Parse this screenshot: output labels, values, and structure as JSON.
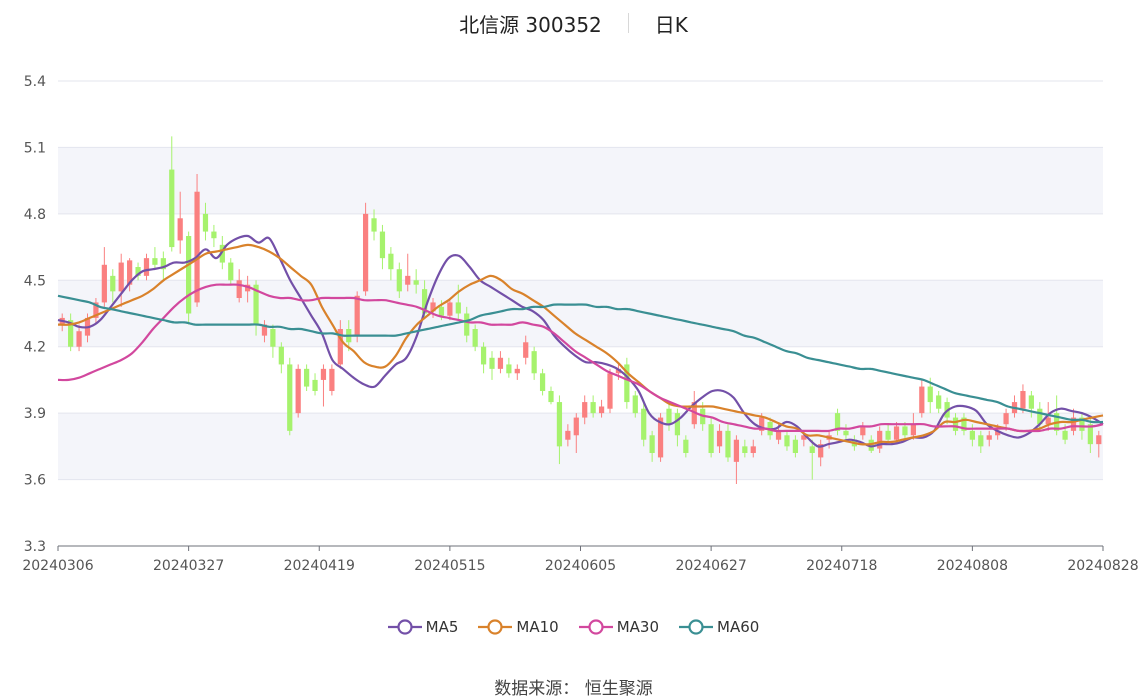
{
  "header": {
    "stock": "北信源 300352",
    "period": "日K"
  },
  "source": "数据来源：  恒生聚源",
  "chart_data": {
    "type": "candlestick",
    "y_ticks": [
      "3.3",
      "3.6",
      "3.9",
      "4.2",
      "4.5",
      "4.8",
      "5.1",
      "5.4"
    ],
    "ylim": [
      3.3,
      5.4
    ],
    "x_ticks": [
      "20240306",
      "20240327",
      "20240419",
      "20240515",
      "20240605",
      "20240627",
      "20240718",
      "20240808",
      "20240828"
    ],
    "up_color": "#fa8080",
    "down_color": "#a6f26d",
    "series": [
      {
        "name": "MA5",
        "color": "#7350a8",
        "values": [
          4.32,
          4.31,
          4.29,
          4.29,
          4.32,
          4.38,
          4.44,
          4.5,
          4.54,
          4.55,
          4.56,
          4.58,
          4.58,
          4.6,
          4.64,
          4.6,
          4.66,
          4.69,
          4.7,
          4.67,
          4.69,
          4.6,
          4.5,
          4.42,
          4.34,
          4.26,
          4.14,
          4.1,
          4.06,
          4.03,
          4.02,
          4.07,
          4.12,
          4.15,
          4.25,
          4.4,
          4.52,
          4.6,
          4.61,
          4.56,
          4.5,
          4.47,
          4.44,
          4.41,
          4.38,
          4.36,
          4.32,
          4.25,
          4.2,
          4.16,
          4.13,
          4.13,
          4.12,
          4.1,
          4.06,
          4.0,
          3.9,
          3.86,
          3.85,
          3.88,
          3.93,
          3.97,
          4.0,
          4.0,
          3.97,
          3.9,
          3.85,
          3.83,
          3.83,
          3.86,
          3.84,
          3.79,
          3.75,
          3.76,
          3.77,
          3.78,
          3.77,
          3.75,
          3.76,
          3.76,
          3.77,
          3.79,
          3.79,
          3.82,
          3.9,
          3.93,
          3.93,
          3.91,
          3.85,
          3.82,
          3.8,
          3.79,
          3.81,
          3.85,
          3.9,
          3.92,
          3.91,
          3.9,
          3.88,
          3.85
        ]
      },
      {
        "name": "MA10",
        "color": "#d9822b",
        "values": [
          4.3,
          4.3,
          4.31,
          4.33,
          4.35,
          4.37,
          4.39,
          4.41,
          4.43,
          4.46,
          4.5,
          4.53,
          4.56,
          4.59,
          4.62,
          4.63,
          4.64,
          4.65,
          4.66,
          4.65,
          4.63,
          4.6,
          4.56,
          4.52,
          4.48,
          4.38,
          4.3,
          4.22,
          4.18,
          4.13,
          4.11,
          4.11,
          4.16,
          4.24,
          4.3,
          4.34,
          4.38,
          4.41,
          4.45,
          4.48,
          4.5,
          4.52,
          4.5,
          4.46,
          4.44,
          4.41,
          4.38,
          4.34,
          4.3,
          4.26,
          4.23,
          4.2,
          4.17,
          4.13,
          4.08,
          4.04,
          4.0,
          3.97,
          3.94,
          3.93,
          3.93,
          3.93,
          3.93,
          3.92,
          3.91,
          3.9,
          3.89,
          3.88,
          3.86,
          3.84,
          3.83,
          3.8,
          3.8,
          3.79,
          3.78,
          3.77,
          3.76,
          3.76,
          3.77,
          3.77,
          3.78,
          3.79,
          3.8,
          3.82,
          3.86,
          3.86,
          3.87,
          3.86,
          3.85,
          3.84,
          3.83,
          3.82,
          3.82,
          3.83,
          3.85,
          3.86,
          3.86,
          3.87,
          3.88,
          3.89
        ]
      },
      {
        "name": "MA30",
        "color": "#d2489e",
        "values": [
          4.05,
          4.05,
          4.06,
          4.08,
          4.1,
          4.12,
          4.14,
          4.17,
          4.22,
          4.28,
          4.33,
          4.38,
          4.42,
          4.45,
          4.47,
          4.48,
          4.48,
          4.48,
          4.47,
          4.45,
          4.43,
          4.42,
          4.42,
          4.41,
          4.41,
          4.42,
          4.42,
          4.42,
          4.42,
          4.41,
          4.41,
          4.41,
          4.4,
          4.39,
          4.38,
          4.36,
          4.34,
          4.33,
          4.32,
          4.31,
          4.31,
          4.3,
          4.3,
          4.3,
          4.31,
          4.3,
          4.29,
          4.26,
          4.22,
          4.18,
          4.15,
          4.12,
          4.09,
          4.07,
          4.05,
          4.03,
          4.0,
          3.97,
          3.95,
          3.93,
          3.91,
          3.89,
          3.88,
          3.86,
          3.85,
          3.84,
          3.83,
          3.83,
          3.82,
          3.82,
          3.82,
          3.82,
          3.82,
          3.82,
          3.83,
          3.83,
          3.84,
          3.84,
          3.85,
          3.85,
          3.85,
          3.85,
          3.85,
          3.84,
          3.84,
          3.84,
          3.83,
          3.83,
          3.83,
          3.83,
          3.83,
          3.82,
          3.82,
          3.82,
          3.83,
          3.83,
          3.84,
          3.84,
          3.84,
          3.85
        ]
      },
      {
        "name": "MA60",
        "color": "#3a8f93",
        "values": [
          4.43,
          4.42,
          4.41,
          4.4,
          4.38,
          4.37,
          4.36,
          4.35,
          4.34,
          4.33,
          4.32,
          4.31,
          4.31,
          4.3,
          4.3,
          4.3,
          4.3,
          4.3,
          4.3,
          4.3,
          4.29,
          4.29,
          4.28,
          4.28,
          4.27,
          4.26,
          4.26,
          4.25,
          4.25,
          4.25,
          4.25,
          4.25,
          4.25,
          4.26,
          4.27,
          4.28,
          4.29,
          4.3,
          4.31,
          4.32,
          4.34,
          4.35,
          4.36,
          4.37,
          4.37,
          4.38,
          4.38,
          4.39,
          4.39,
          4.39,
          4.39,
          4.38,
          4.38,
          4.37,
          4.37,
          4.36,
          4.35,
          4.34,
          4.33,
          4.32,
          4.31,
          4.3,
          4.29,
          4.28,
          4.27,
          4.25,
          4.24,
          4.22,
          4.2,
          4.18,
          4.17,
          4.15,
          4.14,
          4.13,
          4.12,
          4.11,
          4.1,
          4.1,
          4.09,
          4.08,
          4.07,
          4.06,
          4.05,
          4.03,
          4.01,
          3.99,
          3.98,
          3.97,
          3.96,
          3.95,
          3.93,
          3.92,
          3.91,
          3.9,
          3.89,
          3.88,
          3.87,
          3.87,
          3.86,
          3.86
        ]
      }
    ],
    "candles": [
      {
        "o": 4.3,
        "c": 4.33,
        "h": 4.35,
        "l": 4.27
      },
      {
        "o": 4.32,
        "c": 4.2,
        "h": 4.35,
        "l": 4.18
      },
      {
        "o": 4.2,
        "c": 4.27,
        "h": 4.3,
        "l": 4.18
      },
      {
        "o": 4.25,
        "c": 4.33,
        "h": 4.35,
        "l": 4.22
      },
      {
        "o": 4.33,
        "c": 4.4,
        "h": 4.42,
        "l": 4.3
      },
      {
        "o": 4.4,
        "c": 4.57,
        "h": 4.65,
        "l": 4.38
      },
      {
        "o": 4.52,
        "c": 4.45,
        "h": 4.55,
        "l": 4.4
      },
      {
        "o": 4.45,
        "c": 4.58,
        "h": 4.62,
        "l": 4.38
      },
      {
        "o": 4.48,
        "c": 4.59,
        "h": 4.6,
        "l": 4.45
      },
      {
        "o": 4.56,
        "c": 4.52,
        "h": 4.58,
        "l": 4.5
      },
      {
        "o": 4.52,
        "c": 4.6,
        "h": 4.62,
        "l": 4.5
      },
      {
        "o": 4.6,
        "c": 4.57,
        "h": 4.65,
        "l": 4.55
      },
      {
        "o": 4.6,
        "c": 4.55,
        "h": 4.63,
        "l": 4.5
      },
      {
        "o": 5.0,
        "c": 4.65,
        "h": 5.15,
        "l": 4.63
      },
      {
        "o": 4.68,
        "c": 4.78,
        "h": 4.9,
        "l": 4.62
      },
      {
        "o": 4.7,
        "c": 4.35,
        "h": 4.72,
        "l": 4.3
      },
      {
        "o": 4.4,
        "c": 4.9,
        "h": 4.98,
        "l": 4.38
      },
      {
        "o": 4.8,
        "c": 4.72,
        "h": 4.85,
        "l": 4.68
      },
      {
        "o": 4.72,
        "c": 4.69,
        "h": 4.75,
        "l": 4.65
      },
      {
        "o": 4.66,
        "c": 4.58,
        "h": 4.7,
        "l": 4.55
      },
      {
        "o": 4.58,
        "c": 4.5,
        "h": 4.6,
        "l": 4.48
      },
      {
        "o": 4.42,
        "c": 4.5,
        "h": 4.55,
        "l": 4.4
      },
      {
        "o": 4.45,
        "c": 4.48,
        "h": 4.52,
        "l": 4.4
      },
      {
        "o": 4.48,
        "c": 4.3,
        "h": 4.5,
        "l": 4.25
      },
      {
        "o": 4.25,
        "c": 4.3,
        "h": 4.32,
        "l": 4.22
      },
      {
        "o": 4.28,
        "c": 4.2,
        "h": 4.3,
        "l": 4.15
      },
      {
        "o": 4.2,
        "c": 4.12,
        "h": 4.22,
        "l": 4.08
      },
      {
        "o": 4.12,
        "c": 3.82,
        "h": 4.15,
        "l": 3.8
      },
      {
        "o": 3.9,
        "c": 4.1,
        "h": 4.12,
        "l": 3.88
      },
      {
        "o": 4.1,
        "c": 4.02,
        "h": 4.12,
        "l": 4.0
      },
      {
        "o": 4.05,
        "c": 4.0,
        "h": 4.08,
        "l": 3.98
      },
      {
        "o": 4.05,
        "c": 4.1,
        "h": 4.12,
        "l": 3.93
      },
      {
        "o": 4.0,
        "c": 4.1,
        "h": 4.12,
        "l": 3.98
      },
      {
        "o": 4.12,
        "c": 4.28,
        "h": 4.32,
        "l": 4.1
      },
      {
        "o": 4.28,
        "c": 4.22,
        "h": 4.32,
        "l": 4.18
      },
      {
        "o": 4.25,
        "c": 4.43,
        "h": 4.45,
        "l": 4.22
      },
      {
        "o": 4.45,
        "c": 4.8,
        "h": 4.85,
        "l": 4.43
      },
      {
        "o": 4.78,
        "c": 4.72,
        "h": 4.82,
        "l": 4.68
      },
      {
        "o": 4.72,
        "c": 4.6,
        "h": 4.75,
        "l": 4.55
      },
      {
        "o": 4.62,
        "c": 4.55,
        "h": 4.65,
        "l": 4.5
      },
      {
        "o": 4.55,
        "c": 4.45,
        "h": 4.58,
        "l": 4.42
      },
      {
        "o": 4.48,
        "c": 4.52,
        "h": 4.62,
        "l": 4.45
      },
      {
        "o": 4.5,
        "c": 4.48,
        "h": 4.55,
        "l": 4.44
      },
      {
        "o": 4.46,
        "c": 4.35,
        "h": 4.5,
        "l": 4.33
      },
      {
        "o": 4.36,
        "c": 4.4,
        "h": 4.42,
        "l": 4.33
      },
      {
        "o": 4.38,
        "c": 4.34,
        "h": 4.41,
        "l": 4.32
      },
      {
        "o": 4.34,
        "c": 4.4,
        "h": 4.42,
        "l": 4.32
      },
      {
        "o": 4.4,
        "c": 4.35,
        "h": 4.48,
        "l": 4.32
      },
      {
        "o": 4.35,
        "c": 4.25,
        "h": 4.38,
        "l": 4.22
      },
      {
        "o": 4.28,
        "c": 4.2,
        "h": 4.3,
        "l": 4.18
      },
      {
        "o": 4.2,
        "c": 4.12,
        "h": 4.22,
        "l": 4.08
      },
      {
        "o": 4.15,
        "c": 4.1,
        "h": 4.18,
        "l": 4.05
      },
      {
        "o": 4.1,
        "c": 4.15,
        "h": 4.18,
        "l": 4.08
      },
      {
        "o": 4.12,
        "c": 4.08,
        "h": 4.15,
        "l": 4.06
      },
      {
        "o": 4.08,
        "c": 4.1,
        "h": 4.12,
        "l": 4.05
      },
      {
        "o": 4.15,
        "c": 4.22,
        "h": 4.25,
        "l": 4.12
      },
      {
        "o": 4.18,
        "c": 4.08,
        "h": 4.2,
        "l": 4.05
      },
      {
        "o": 4.08,
        "c": 4.0,
        "h": 4.1,
        "l": 3.98
      },
      {
        "o": 4.0,
        "c": 3.95,
        "h": 4.02,
        "l": 3.94
      },
      {
        "o": 3.95,
        "c": 3.75,
        "h": 3.98,
        "l": 3.67
      },
      {
        "o": 3.78,
        "c": 3.82,
        "h": 3.85,
        "l": 3.75
      },
      {
        "o": 3.8,
        "c": 3.88,
        "h": 3.9,
        "l": 3.72
      },
      {
        "o": 3.88,
        "c": 3.95,
        "h": 3.98,
        "l": 3.85
      },
      {
        "o": 3.95,
        "c": 3.9,
        "h": 3.98,
        "l": 3.88
      },
      {
        "o": 3.9,
        "c": 3.93,
        "h": 3.96,
        "l": 3.88
      },
      {
        "o": 3.92,
        "c": 4.08,
        "h": 4.1,
        "l": 3.9
      },
      {
        "o": 4.08,
        "c": 4.1,
        "h": 4.12,
        "l": 4.05
      },
      {
        "o": 4.12,
        "c": 3.95,
        "h": 4.15,
        "l": 3.92
      },
      {
        "o": 3.98,
        "c": 3.9,
        "h": 4.0,
        "l": 3.88
      },
      {
        "o": 3.92,
        "c": 3.78,
        "h": 3.95,
        "l": 3.75
      },
      {
        "o": 3.8,
        "c": 3.72,
        "h": 3.82,
        "l": 3.68
      },
      {
        "o": 3.7,
        "c": 3.88,
        "h": 3.9,
        "l": 3.68
      },
      {
        "o": 3.92,
        "c": 3.85,
        "h": 3.95,
        "l": 3.82
      },
      {
        "o": 3.9,
        "c": 3.8,
        "h": 3.92,
        "l": 3.75
      },
      {
        "o": 3.78,
        "c": 3.72,
        "h": 3.8,
        "l": 3.7
      },
      {
        "o": 3.85,
        "c": 3.95,
        "h": 4.0,
        "l": 3.83
      },
      {
        "o": 3.92,
        "c": 3.85,
        "h": 3.95,
        "l": 3.82
      },
      {
        "o": 3.85,
        "c": 3.72,
        "h": 3.88,
        "l": 3.7
      },
      {
        "o": 3.75,
        "c": 3.82,
        "h": 3.85,
        "l": 3.72
      },
      {
        "o": 3.82,
        "c": 3.7,
        "h": 3.85,
        "l": 3.68
      },
      {
        "o": 3.68,
        "c": 3.78,
        "h": 3.8,
        "l": 3.58
      },
      {
        "o": 3.75,
        "c": 3.72,
        "h": 3.78,
        "l": 3.7
      },
      {
        "o": 3.72,
        "c": 3.75,
        "h": 3.78,
        "l": 3.7
      },
      {
        "o": 3.82,
        "c": 3.88,
        "h": 3.9,
        "l": 3.8
      },
      {
        "o": 3.86,
        "c": 3.8,
        "h": 3.88,
        "l": 3.78
      },
      {
        "o": 3.78,
        "c": 3.82,
        "h": 3.85,
        "l": 3.76
      },
      {
        "o": 3.8,
        "c": 3.75,
        "h": 3.82,
        "l": 3.73
      },
      {
        "o": 3.78,
        "c": 3.72,
        "h": 3.8,
        "l": 3.7
      },
      {
        "o": 3.78,
        "c": 3.8,
        "h": 3.82,
        "l": 3.75
      },
      {
        "o": 3.75,
        "c": 3.72,
        "h": 3.78,
        "l": 3.6
      },
      {
        "o": 3.7,
        "c": 3.76,
        "h": 3.78,
        "l": 3.66
      },
      {
        "o": 3.78,
        "c": 3.8,
        "h": 3.82,
        "l": 3.74
      },
      {
        "o": 3.9,
        "c": 3.82,
        "h": 3.92,
        "l": 3.8
      },
      {
        "o": 3.82,
        "c": 3.8,
        "h": 3.85,
        "l": 3.78
      },
      {
        "o": 3.78,
        "c": 3.75,
        "h": 3.8,
        "l": 3.73
      },
      {
        "o": 3.8,
        "c": 3.84,
        "h": 3.86,
        "l": 3.78
      },
      {
        "o": 3.78,
        "c": 3.73,
        "h": 3.8,
        "l": 3.72
      },
      {
        "o": 3.74,
        "c": 3.82,
        "h": 3.84,
        "l": 3.72
      },
      {
        "o": 3.82,
        "c": 3.78,
        "h": 3.85,
        "l": 3.76
      },
      {
        "o": 3.78,
        "c": 3.84,
        "h": 3.86,
        "l": 3.76
      },
      {
        "o": 3.84,
        "c": 3.8,
        "h": 3.86,
        "l": 3.78
      },
      {
        "o": 3.8,
        "c": 3.85,
        "h": 3.9,
        "l": 3.78
      },
      {
        "o": 3.9,
        "c": 4.02,
        "h": 4.05,
        "l": 3.88
      },
      {
        "o": 4.02,
        "c": 3.95,
        "h": 4.06,
        "l": 3.9
      },
      {
        "o": 3.98,
        "c": 3.92,
        "h": 4.0,
        "l": 3.9
      },
      {
        "o": 3.95,
        "c": 3.88,
        "h": 3.97,
        "l": 3.85
      },
      {
        "o": 3.88,
        "c": 3.82,
        "h": 3.9,
        "l": 3.8
      },
      {
        "o": 3.88,
        "c": 3.82,
        "h": 3.9,
        "l": 3.8
      },
      {
        "o": 3.82,
        "c": 3.78,
        "h": 3.85,
        "l": 3.75
      },
      {
        "o": 3.8,
        "c": 3.75,
        "h": 3.82,
        "l": 3.72
      },
      {
        "o": 3.78,
        "c": 3.8,
        "h": 3.82,
        "l": 3.75
      },
      {
        "o": 3.8,
        "c": 3.82,
        "h": 3.85,
        "l": 3.78
      },
      {
        "o": 3.85,
        "c": 3.9,
        "h": 3.92,
        "l": 3.82
      },
      {
        "o": 3.9,
        "c": 3.95,
        "h": 3.98,
        "l": 3.88
      },
      {
        "o": 3.92,
        "c": 4.0,
        "h": 4.03,
        "l": 3.9
      },
      {
        "o": 3.98,
        "c": 3.92,
        "h": 4.0,
        "l": 3.88
      },
      {
        "o": 3.92,
        "c": 3.85,
        "h": 3.95,
        "l": 3.82
      },
      {
        "o": 3.85,
        "c": 3.88,
        "h": 3.95,
        "l": 3.82
      },
      {
        "o": 3.9,
        "c": 3.82,
        "h": 3.98,
        "l": 3.8
      },
      {
        "o": 3.82,
        "c": 3.78,
        "h": 3.85,
        "l": 3.76
      },
      {
        "o": 3.82,
        "c": 3.88,
        "h": 3.92,
        "l": 3.8
      },
      {
        "o": 3.88,
        "c": 3.82,
        "h": 3.9,
        "l": 3.78
      },
      {
        "o": 3.85,
        "c": 3.76,
        "h": 3.88,
        "l": 3.72
      },
      {
        "o": 3.76,
        "c": 3.8,
        "h": 3.82,
        "l": 3.7
      }
    ]
  }
}
